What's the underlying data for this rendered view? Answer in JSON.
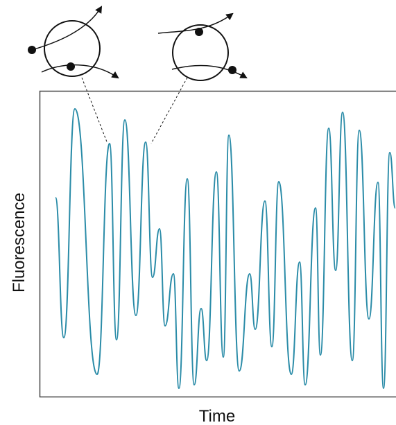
{
  "axes": {
    "x_label": "Time",
    "y_label": "Fluorescence"
  }
}
